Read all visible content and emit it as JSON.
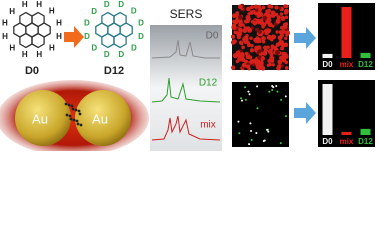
{
  "molecules": [
    {
      "label": "D0",
      "atoms": [
        "H",
        "H",
        "H",
        "H",
        "H",
        "H",
        "H",
        "H",
        "H",
        "H",
        "H",
        "H"
      ]
    },
    {
      "label": "D12",
      "atoms": [
        "D",
        "D",
        "D",
        "D",
        "D",
        "D",
        "D",
        "D",
        "D",
        "D",
        "D",
        "D"
      ]
    }
  ],
  "particles": [
    "Au",
    "Au"
  ],
  "sers": {
    "title": "SERS",
    "spectra": [
      "D0",
      "D12",
      "mix"
    ]
  },
  "bar_panels": [
    {
      "categories": [
        "D0",
        "mix",
        "D12"
      ],
      "colors": [
        "#f2f2f2",
        "#e8201c",
        "#2fbf3a"
      ],
      "values": [
        8,
        100,
        10
      ],
      "ylim": [
        0,
        100
      ]
    },
    {
      "categories": [
        "D0",
        "mix",
        "D12"
      ],
      "colors": [
        "#f2f2f2",
        "#e8201c",
        "#2fbf3a"
      ],
      "values": [
        100,
        6,
        12
      ],
      "ylim": [
        0,
        100
      ]
    }
  ]
}
